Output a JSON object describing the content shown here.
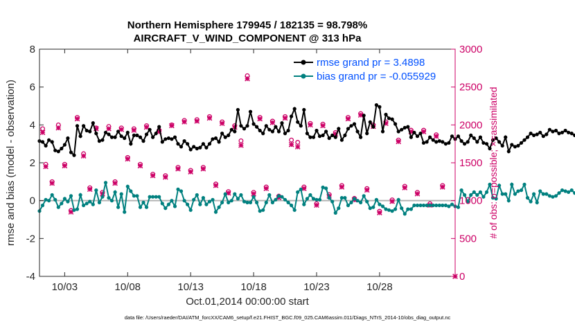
{
  "chart_data": {
    "type": "line",
    "title_line1": "Northern Hemisphere 179945 / 182135 = 98.798%",
    "title_line2": "AIRCRAFT_V_WIND_COMPONENT @ 313 hPa",
    "ylabel_left": "rmse and bias (model - observation)",
    "ylabel_right": "# of obs: o=possible; ×=assimilated",
    "xlabel": "Oct.01,2014 00:00:00 start",
    "footer": "data file: /Users/raeder/DAI/ATM_forcXX/CAM6_setup/f.e21.FHIST_BGC.f09_025.CAM6assim.011/Diags_NTrS_2014-10/obs_diag_output.nc",
    "ylim_left": [
      -4,
      8
    ],
    "yticks_left": [
      "8",
      "6",
      "4",
      "2",
      "0",
      "-2",
      "-4"
    ],
    "ylim_right": [
      0,
      3000
    ],
    "yticks_right": [
      "3000",
      "2500",
      "2000",
      "1500",
      "1000",
      "500",
      "0"
    ],
    "xlim": [
      1.0,
      34.0
    ],
    "xticks": [
      {
        "day": 3,
        "label": "10/03"
      },
      {
        "day": 8,
        "label": "10/08"
      },
      {
        "day": 13,
        "label": "10/13"
      },
      {
        "day": 18,
        "label": "10/18"
      },
      {
        "day": 23,
        "label": "10/23"
      },
      {
        "day": 28,
        "label": "10/28"
      }
    ],
    "x_start": 1.0,
    "x_step": 0.25,
    "series": [
      {
        "name": "rmse",
        "legend": "rmse grand pr = 3.4898",
        "color": "#000000",
        "values": [
          3.15,
          3.1,
          2.9,
          3.2,
          3.1,
          2.65,
          2.6,
          2.75,
          2.95,
          3.3,
          2.55,
          2.4,
          3.95,
          3.4,
          3.95,
          3.7,
          3.65,
          4.1,
          3.55,
          3.15,
          3.2,
          3.6,
          3.5,
          3.35,
          3.35,
          3.65,
          3.4,
          3.3,
          3.6,
          3.0,
          3.45,
          3.45,
          3.35,
          3.15,
          3.5,
          3.75,
          3.35,
          3.55,
          3.9,
          3.1,
          3.25,
          3.3,
          3.25,
          3.35,
          3.0,
          2.85,
          3.15,
          3.0,
          2.7,
          2.85,
          2.75,
          2.8,
          3.0,
          2.8,
          3.0,
          3.25,
          3.3,
          3.1,
          3.55,
          3.35,
          3.45,
          3.75,
          3.65,
          4.8,
          3.95,
          3.8,
          3.95,
          4.7,
          4.05,
          3.9,
          3.7,
          3.55,
          3.95,
          3.75,
          3.65,
          3.9,
          3.65,
          4.1,
          3.55,
          3.7,
          4.45,
          4.85,
          4.15,
          3.95,
          4.8,
          3.55,
          3.35,
          3.35,
          3.7,
          3.4,
          3.45,
          3.65,
          3.3,
          3.45,
          3.35,
          3.8,
          3.2,
          3.45,
          3.8,
          3.95,
          4.05,
          3.65,
          3.35,
          4.5,
          3.55,
          4.15,
          3.9,
          5.05,
          4.95,
          3.65,
          4.55,
          4.35,
          4.3,
          4.05,
          3.65,
          3.75,
          3.85,
          3.9,
          3.35,
          3.6,
          3.4,
          3.55,
          3.05,
          3.1,
          3.35,
          3.2,
          3.1,
          3.15,
          3.1,
          3.0,
          3.05,
          3.4,
          3.25,
          3.4,
          3.15,
          3.0,
          3.1,
          3.45,
          3.3,
          3.1,
          3.35,
          3.05,
          3.0,
          2.75,
          3.2,
          3.3,
          3.1,
          2.9,
          3.35,
          2.6,
          2.95,
          2.85,
          2.9,
          3.05,
          3.2,
          3.35,
          3.55,
          3.45,
          3.5,
          3.6,
          3.4,
          3.5,
          3.75,
          3.65,
          3.7,
          3.55,
          3.6,
          3.7,
          3.6,
          3.55,
          3.45,
          3.3,
          3.2
        ]
      },
      {
        "name": "bias",
        "legend": "bias grand pr = -0.055929",
        "color": "#00807f",
        "values": [
          -0.55,
          -0.25,
          0.05,
          0.0,
          0.3,
          0.05,
          -0.35,
          -0.15,
          0.1,
          -0.05,
          0.25,
          -0.5,
          -0.45,
          0.3,
          -0.25,
          -0.15,
          -0.05,
          -0.2,
          0.55,
          -0.1,
          0.2,
          0.95,
          0.15,
          0.0,
          0.45,
          -0.35,
          0.35,
          -0.6,
          0.75,
          0.5,
          0.25,
          0.25,
          -0.35,
          -0.1,
          -0.35,
          0.2,
          0.2,
          0.2,
          0.2,
          -0.15,
          -0.4,
          -0.2,
          0.0,
          -0.3,
          0.6,
          0.5,
          0.0,
          -0.2,
          -0.5,
          0.05,
          0.3,
          -0.2,
          0.15,
          -0.2,
          -0.05,
          0.05,
          -0.6,
          -0.35,
          -0.1,
          0.35,
          -0.1,
          0.0,
          0.35,
          0.1,
          0.3,
          -0.05,
          -0.1,
          -0.1,
          0.2,
          -0.1,
          -0.55,
          -0.5,
          -0.1,
          0.3,
          -0.1,
          0.05,
          0.25,
          0.2,
          0.05,
          -0.1,
          -0.25,
          -0.5,
          0.45,
          0.6,
          -0.2,
          0.1,
          0.3,
          0.1,
          0.05,
          0.05,
          0.7,
          0.65,
          0.15,
          -0.05,
          -0.65,
          -0.4,
          0.15,
          0.15,
          -0.25,
          -0.1,
          0.1,
          0.0,
          -0.1,
          0.25,
          -0.05,
          -0.4,
          -0.35,
          0.05,
          -0.2,
          -0.3,
          -0.45,
          -0.5,
          -0.55,
          -0.45,
          0.05,
          -0.4,
          -0.7,
          -0.45,
          -0.45,
          -0.25,
          -0.25,
          -0.25,
          -0.25,
          -0.25,
          -0.25,
          -0.25,
          -0.25,
          -0.25,
          -0.25,
          -0.25,
          -0.3,
          -0.2,
          -0.3,
          -0.35,
          0.55,
          0.3,
          -0.05,
          0.3,
          0.45,
          0.3,
          0.45,
          0.2,
          0.45,
          0.85,
          0.15,
          0.1,
          0.8,
          0.35,
          0.35,
          0.0,
          0.85,
          0.35,
          0.5,
          0.55,
          0.85,
          0.15,
          -0.05,
          0.35,
          -0.1,
          0.5,
          0.35,
          0.35,
          0.25,
          0.2,
          0.25,
          0.4,
          0.55,
          0.5,
          0.45,
          0.55,
          0.4,
          0.6,
          0.4,
          0.5,
          0.85
        ]
      }
    ],
    "obs_possible": [
      {
        "day": 1.25,
        "count": 1950
      },
      {
        "day": 1.5,
        "count": 1480
      },
      {
        "day": 2.0,
        "count": 1250
      },
      {
        "day": 2.5,
        "count": 2000
      },
      {
        "day": 3.0,
        "count": 1480
      },
      {
        "day": 3.5,
        "count": 870
      },
      {
        "day": 4.0,
        "count": 2100
      },
      {
        "day": 4.5,
        "count": 1620
      },
      {
        "day": 5.0,
        "count": 1170
      },
      {
        "day": 5.5,
        "count": 1960
      },
      {
        "day": 6.0,
        "count": 1110
      },
      {
        "day": 6.5,
        "count": 1980
      },
      {
        "day": 7.0,
        "count": 1250
      },
      {
        "day": 7.5,
        "count": 1960
      },
      {
        "day": 8.0,
        "count": 1570
      },
      {
        "day": 8.5,
        "count": 1950
      },
      {
        "day": 9.0,
        "count": 1480
      },
      {
        "day": 9.5,
        "count": 1990
      },
      {
        "day": 10.0,
        "count": 1350
      },
      {
        "day": 10.5,
        "count": 1930
      },
      {
        "day": 11.0,
        "count": 1330
      },
      {
        "day": 11.5,
        "count": 2000
      },
      {
        "day": 12.0,
        "count": 1440
      },
      {
        "day": 12.5,
        "count": 2060
      },
      {
        "day": 13.0,
        "count": 1400
      },
      {
        "day": 13.5,
        "count": 2070
      },
      {
        "day": 14.0,
        "count": 1440
      },
      {
        "day": 14.5,
        "count": 2110
      },
      {
        "day": 15.0,
        "count": 1220
      },
      {
        "day": 15.5,
        "count": 2040
      },
      {
        "day": 16.0,
        "count": 1120
      },
      {
        "day": 16.5,
        "count": 1990
      },
      {
        "day": 17.0,
        "count": 1790
      },
      {
        "day": 17.5,
        "count": 2650
      },
      {
        "day": 18.0,
        "count": 1110
      },
      {
        "day": 18.5,
        "count": 2100
      },
      {
        "day": 19.0,
        "count": 1180
      },
      {
        "day": 19.5,
        "count": 2050
      },
      {
        "day": 20.0,
        "count": 1060
      },
      {
        "day": 20.5,
        "count": 2110
      },
      {
        "day": 21.0,
        "count": 1800
      },
      {
        "day": 21.5,
        "count": 1770
      },
      {
        "day": 22.0,
        "count": 1180
      },
      {
        "day": 22.5,
        "count": 2020
      },
      {
        "day": 23.0,
        "count": 960
      },
      {
        "day": 23.5,
        "count": 2010
      },
      {
        "day": 24.0,
        "count": 1080
      },
      {
        "day": 24.5,
        "count": 1900
      },
      {
        "day": 25.0,
        "count": 1200
      },
      {
        "day": 25.5,
        "count": 2100
      },
      {
        "day": 26.0,
        "count": 1030
      },
      {
        "day": 26.5,
        "count": 2150
      },
      {
        "day": 27.0,
        "count": 1160
      },
      {
        "day": 27.5,
        "count": 2000
      },
      {
        "day": 28.0,
        "count": 860
      },
      {
        "day": 28.5,
        "count": 2040
      },
      {
        "day": 29.0,
        "count": 1010
      },
      {
        "day": 29.5,
        "count": 1800
      },
      {
        "day": 30.0,
        "count": 1190
      },
      {
        "day": 30.5,
        "count": 1930
      },
      {
        "day": 31.0,
        "count": 1110
      },
      {
        "day": 31.5,
        "count": 1930
      },
      {
        "day": 32.0,
        "count": 960
      },
      {
        "day": 32.5,
        "count": 1870
      },
      {
        "day": 33.0,
        "count": 1200
      }
    ],
    "obs_assimilated": [
      {
        "day": 1.25,
        "count": 1900
      },
      {
        "day": 1.5,
        "count": 1450
      },
      {
        "day": 2.0,
        "count": 1230
      },
      {
        "day": 2.5,
        "count": 1960
      },
      {
        "day": 3.0,
        "count": 1460
      },
      {
        "day": 3.5,
        "count": 850
      },
      {
        "day": 4.0,
        "count": 2080
      },
      {
        "day": 4.5,
        "count": 1590
      },
      {
        "day": 5.0,
        "count": 1150
      },
      {
        "day": 5.5,
        "count": 1950
      },
      {
        "day": 6.0,
        "count": 1090
      },
      {
        "day": 6.5,
        "count": 1950
      },
      {
        "day": 7.0,
        "count": 1230
      },
      {
        "day": 7.5,
        "count": 1940
      },
      {
        "day": 8.0,
        "count": 1550
      },
      {
        "day": 8.5,
        "count": 1930
      },
      {
        "day": 9.0,
        "count": 1460
      },
      {
        "day": 9.5,
        "count": 1970
      },
      {
        "day": 10.0,
        "count": 1330
      },
      {
        "day": 10.5,
        "count": 1910
      },
      {
        "day": 11.0,
        "count": 1310
      },
      {
        "day": 11.5,
        "count": 1990
      },
      {
        "day": 12.0,
        "count": 1420
      },
      {
        "day": 12.5,
        "count": 2040
      },
      {
        "day": 13.0,
        "count": 1380
      },
      {
        "day": 13.5,
        "count": 2050
      },
      {
        "day": 14.0,
        "count": 1420
      },
      {
        "day": 14.5,
        "count": 2090
      },
      {
        "day": 15.0,
        "count": 1200
      },
      {
        "day": 15.5,
        "count": 2020
      },
      {
        "day": 16.0,
        "count": 1100
      },
      {
        "day": 16.5,
        "count": 1970
      },
      {
        "day": 17.0,
        "count": 1730
      },
      {
        "day": 17.5,
        "count": 2610
      },
      {
        "day": 18.0,
        "count": 1090
      },
      {
        "day": 18.5,
        "count": 2080
      },
      {
        "day": 19.0,
        "count": 1160
      },
      {
        "day": 19.5,
        "count": 2030
      },
      {
        "day": 20.0,
        "count": 1040
      },
      {
        "day": 20.5,
        "count": 2090
      },
      {
        "day": 21.0,
        "count": 1740
      },
      {
        "day": 21.5,
        "count": 1710
      },
      {
        "day": 22.0,
        "count": 1160
      },
      {
        "day": 22.5,
        "count": 2000
      },
      {
        "day": 23.0,
        "count": 940
      },
      {
        "day": 23.5,
        "count": 1990
      },
      {
        "day": 24.0,
        "count": 1060
      },
      {
        "day": 24.5,
        "count": 1880
      },
      {
        "day": 25.0,
        "count": 1180
      },
      {
        "day": 25.5,
        "count": 2080
      },
      {
        "day": 26.0,
        "count": 1010
      },
      {
        "day": 26.5,
        "count": 2130
      },
      {
        "day": 27.0,
        "count": 1140
      },
      {
        "day": 27.5,
        "count": 1980
      },
      {
        "day": 28.0,
        "count": 840
      },
      {
        "day": 28.5,
        "count": 2020
      },
      {
        "day": 29.0,
        "count": 990
      },
      {
        "day": 29.5,
        "count": 1780
      },
      {
        "day": 30.0,
        "count": 1170
      },
      {
        "day": 30.5,
        "count": 1910
      },
      {
        "day": 31.0,
        "count": 1090
      },
      {
        "day": 31.5,
        "count": 1910
      },
      {
        "day": 32.0,
        "count": 940
      },
      {
        "day": 32.5,
        "count": 1850
      },
      {
        "day": 33.0,
        "count": 1180
      },
      {
        "day": 34.0,
        "count": 0
      }
    ],
    "zero_line": true,
    "grid": false,
    "legend_position": "top-right",
    "colors": {
      "rmse": "#000000",
      "bias": "#00807f",
      "obs": "#cc0066",
      "zero": "#b3b3b3"
    }
  }
}
